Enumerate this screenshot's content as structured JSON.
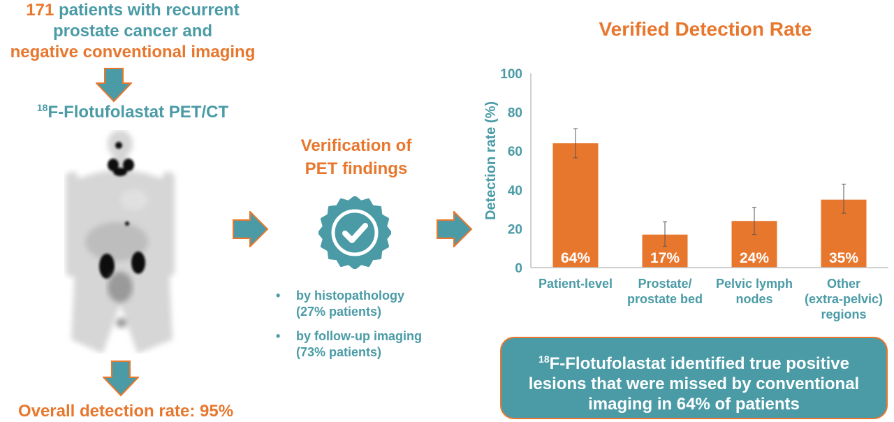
{
  "intro": {
    "line1_count": "171",
    "line1_rest": " patients with recurrent",
    "line2": "prostate cancer and",
    "line3": "negative conventional imaging"
  },
  "pet": {
    "title_sup": "18",
    "title_rest": "F-Flotufolastat PET/CT"
  },
  "overall": "Overall detection rate: 95%",
  "verification": {
    "title_line1": "Verification of",
    "title_line2": "PET findings",
    "bullets": [
      {
        "line1": "by histopathology",
        "line2": "(27% patients)"
      },
      {
        "line1": "by follow-up imaging",
        "line2": "(73% patients)"
      }
    ],
    "bullet_symbol": "•"
  },
  "summary": {
    "sup": "18",
    "line1_rest": "F-Flotufolastat identified true positive",
    "line2": "lesions that were missed by conventional",
    "line3": "imaging in 64% of patients"
  },
  "colors": {
    "orange": "#E8772E",
    "teal": "#4A9BA6"
  },
  "icons": [
    "arrow-down-icon",
    "arrow-right-icon",
    "verified-badge-icon",
    "checkmark-icon"
  ],
  "chart_data": {
    "type": "bar",
    "title": "Verified Detection Rate",
    "ylabel": "Detection rate (%)",
    "ylim": [
      0,
      100
    ],
    "yticks": [
      "0",
      "20",
      "40",
      "60",
      "80",
      "100"
    ],
    "categories": [
      [
        "Patient-level"
      ],
      [
        "Prostate/",
        "prostate bed"
      ],
      [
        "Pelvic lymph",
        "nodes"
      ],
      [
        "Other",
        "(extra-pelvic)",
        "regions"
      ]
    ],
    "values": [
      64,
      17,
      24,
      35
    ],
    "error_low": [
      56.5,
      11,
      17,
      28
    ],
    "error_high": [
      71.5,
      23.5,
      31,
      43
    ],
    "value_labels": [
      "64%",
      "17%",
      "24%",
      "35%"
    ]
  }
}
